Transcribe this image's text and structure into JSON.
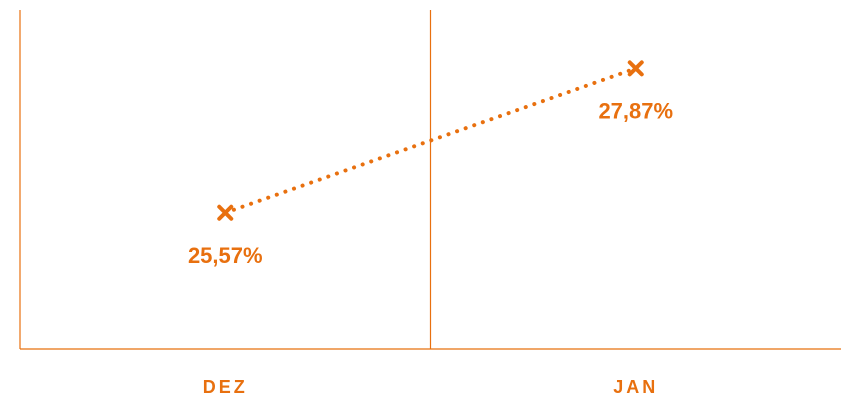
{
  "chart_data": {
    "type": "line",
    "categories": [
      "DEZ",
      "JAN"
    ],
    "series": [
      {
        "values": [
          25.57,
          27.87
        ]
      }
    ],
    "data_labels": [
      "25,57%",
      "27,87%"
    ],
    "ylim": [
      23.4,
      28.8
    ],
    "grid": "vertical separators between categories",
    "line_style": "dotted",
    "marker": "x",
    "color": "#E8700F",
    "axis_color": "#E8700F"
  }
}
